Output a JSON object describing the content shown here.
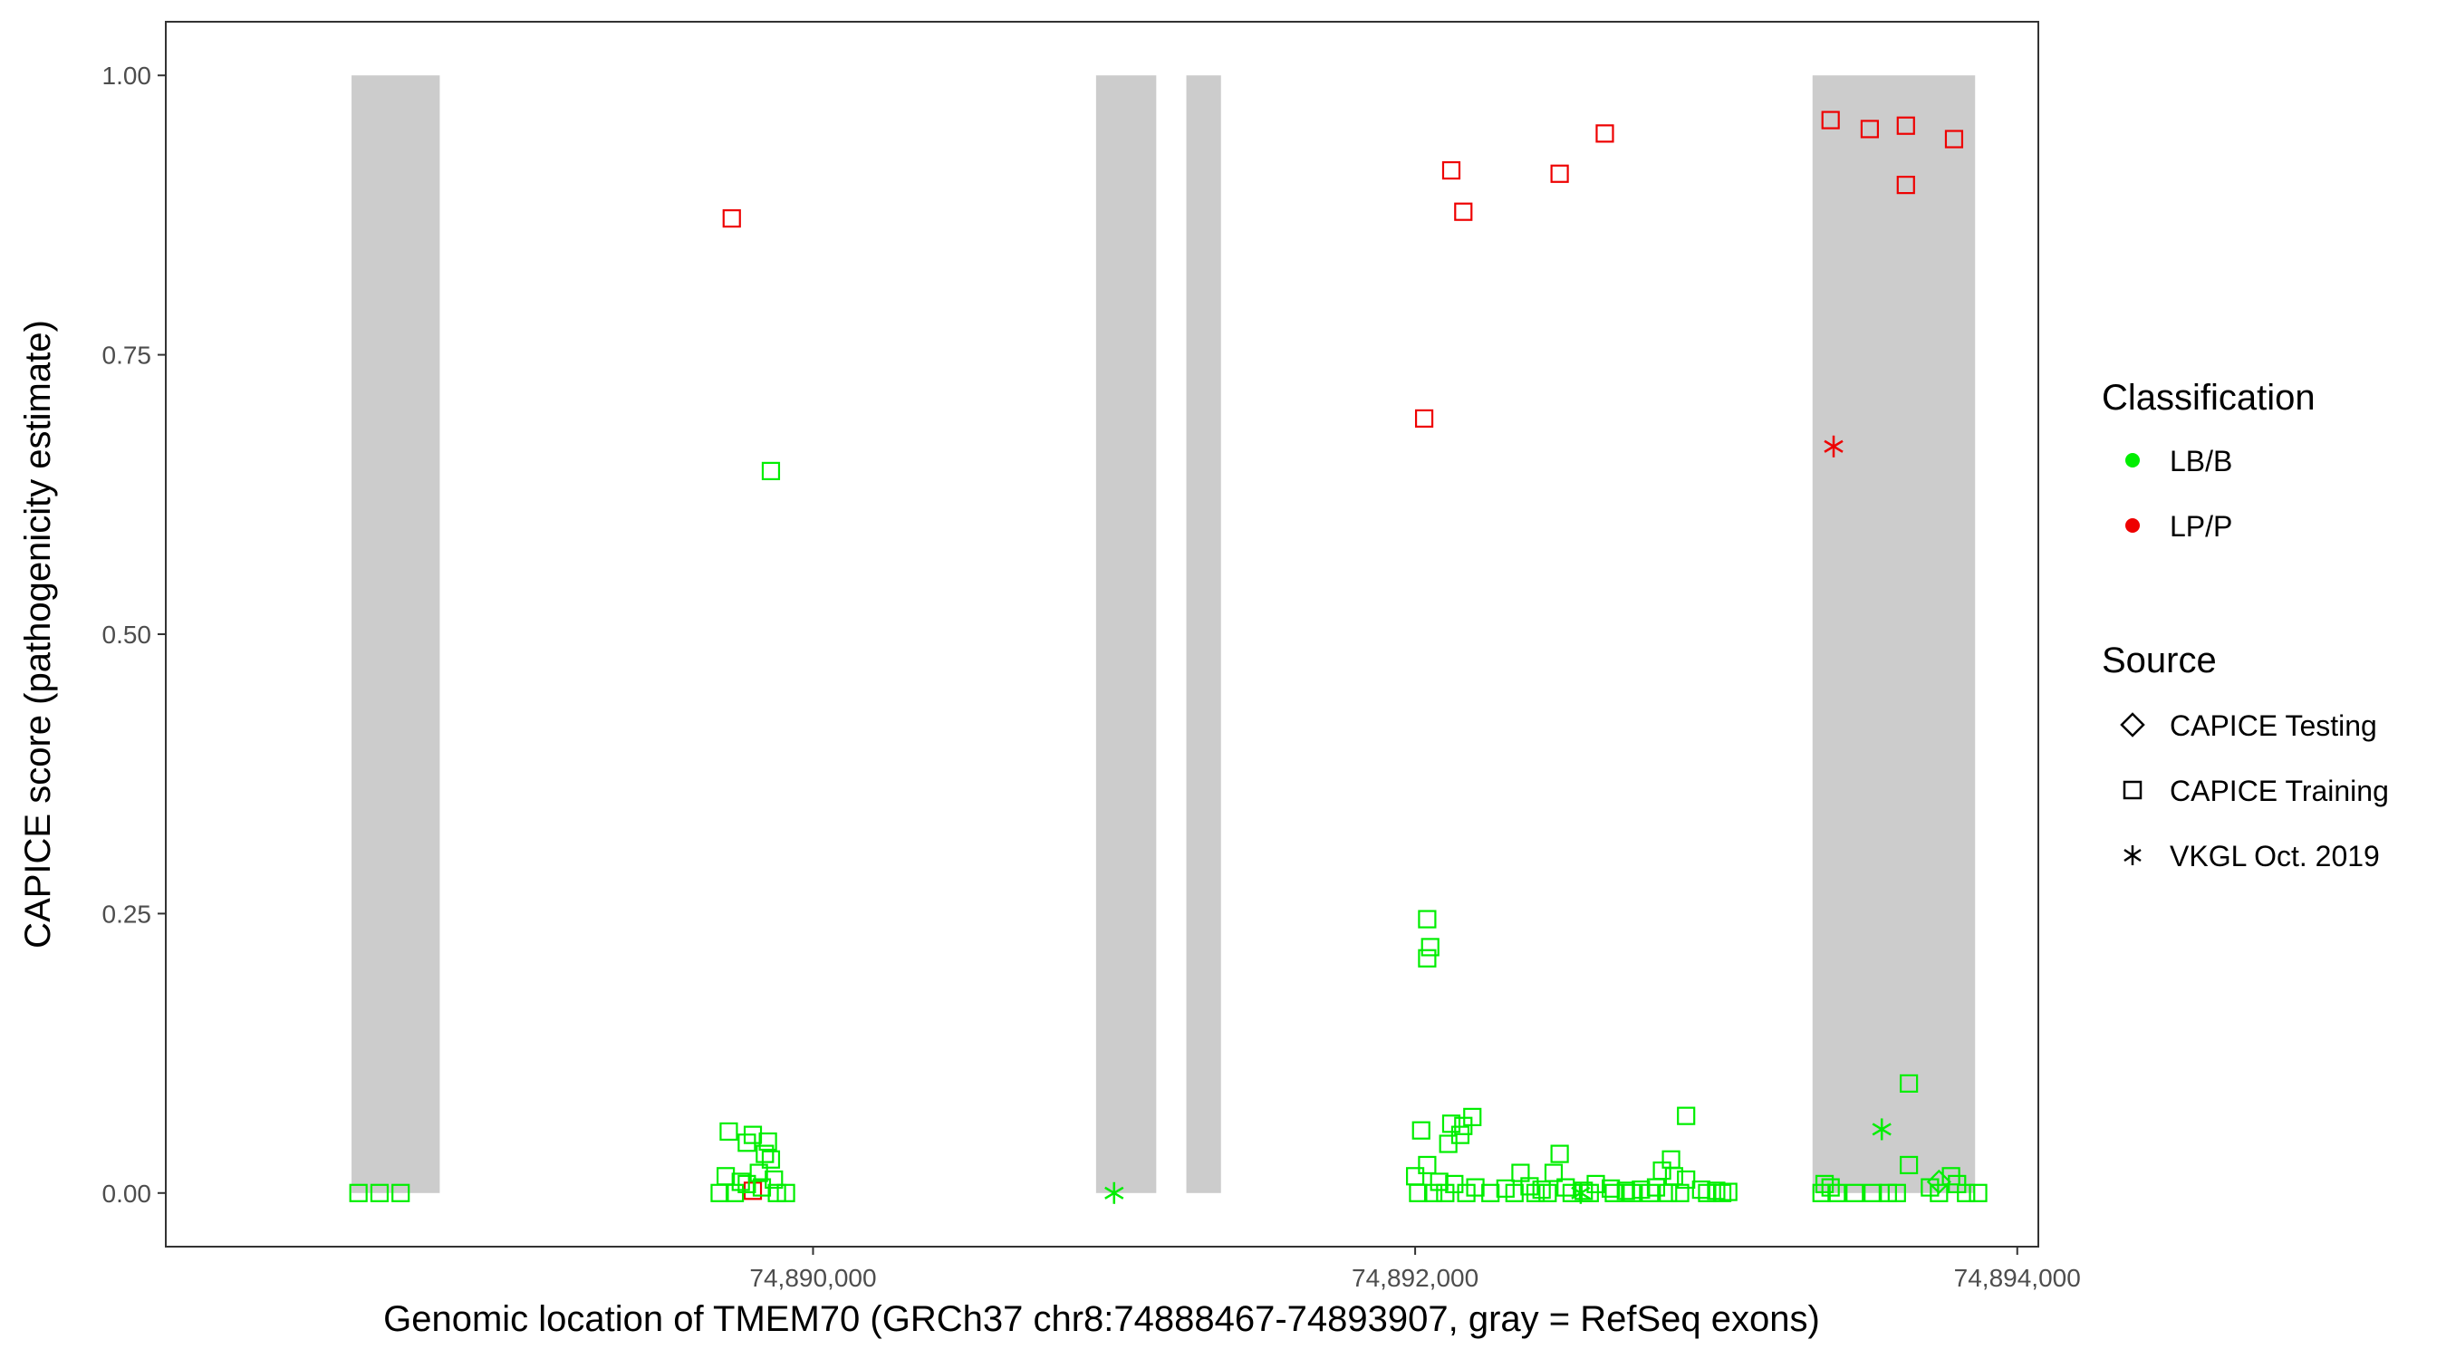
{
  "chart_data": {
    "type": "scatter",
    "title": "",
    "xlabel": "Genomic location of TMEM70 (GRCh37 chr8:74888467-74893907, gray = RefSeq exons)",
    "ylabel": "CAPICE score (pathogenicity estimate)",
    "xlim": [
      74887850,
      74894070
    ],
    "ylim": [
      -0.048,
      1.048
    ],
    "grid": false,
    "legend_position": "right",
    "x_ticks": [
      74890000,
      74892000,
      74894000
    ],
    "x_tick_labels": [
      "74,890,000",
      "74,892,000",
      "74,894,000"
    ],
    "y_ticks": [
      0.0,
      0.25,
      0.5,
      0.75,
      1.0
    ],
    "y_tick_labels": [
      "0.00",
      "0.25",
      "0.50",
      "0.75",
      "1.00"
    ],
    "exons": [
      [
        74888467,
        74888760
      ],
      [
        74890940,
        74891140
      ],
      [
        74891240,
        74891355
      ],
      [
        74893320,
        74893860
      ]
    ],
    "colors": {
      "LB/B": "#00ee00",
      "LP/P": "#ee0000",
      "exon": "#cccccc"
    },
    "legend": {
      "classification_title": "Classification",
      "classification_items": [
        "LB/B",
        "LP/P"
      ],
      "source_title": "Source",
      "source_items": [
        "CAPICE Testing",
        "CAPICE Training",
        "VKGL Oct. 2019"
      ]
    },
    "series": [
      {
        "classification": "LP/P",
        "source": "CAPICE Training",
        "points": [
          [
            74889730,
            0.872
          ],
          [
            74892120,
            0.915
          ],
          [
            74892160,
            0.878
          ],
          [
            74892480,
            0.912
          ],
          [
            74892630,
            0.948
          ],
          [
            74893380,
            0.96
          ],
          [
            74893510,
            0.952
          ],
          [
            74893630,
            0.955
          ],
          [
            74893630,
            0.902
          ],
          [
            74893790,
            0.943
          ],
          [
            74892030,
            0.693
          ],
          [
            74889800,
            0.002
          ]
        ]
      },
      {
        "classification": "LP/P",
        "source": "VKGL Oct. 2019",
        "points": [
          [
            74893390,
            0.668
          ]
        ]
      },
      {
        "classification": "LB/B",
        "source": "CAPICE Training",
        "points": [
          [
            74888490,
            0.0
          ],
          [
            74888560,
            0.0
          ],
          [
            74888630,
            0.0
          ],
          [
            74889860,
            0.646
          ],
          [
            74889720,
            0.055
          ],
          [
            74889780,
            0.045
          ],
          [
            74889800,
            0.052
          ],
          [
            74889850,
            0.046
          ],
          [
            74889840,
            0.035
          ],
          [
            74889860,
            0.03
          ],
          [
            74889820,
            0.018
          ],
          [
            74889710,
            0.015
          ],
          [
            74889760,
            0.01
          ],
          [
            74889870,
            0.012
          ],
          [
            74889780,
            0.008
          ],
          [
            74889830,
            0.005
          ],
          [
            74889690,
            0.0
          ],
          [
            74889740,
            0.0
          ],
          [
            74889880,
            0.0
          ],
          [
            74889910,
            0.0
          ],
          [
            74892040,
            0.245
          ],
          [
            74892050,
            0.22
          ],
          [
            74892040,
            0.21
          ],
          [
            74892020,
            0.056
          ],
          [
            74892110,
            0.044
          ],
          [
            74892150,
            0.052
          ],
          [
            74892160,
            0.06
          ],
          [
            74892120,
            0.062
          ],
          [
            74892190,
            0.068
          ],
          [
            74892040,
            0.025
          ],
          [
            74892900,
            0.069
          ],
          [
            74892480,
            0.035
          ],
          [
            74892350,
            0.018
          ],
          [
            74892460,
            0.018
          ],
          [
            74892850,
            0.03
          ],
          [
            74892820,
            0.02
          ],
          [
            74892860,
            0.015
          ],
          [
            74892900,
            0.012
          ],
          [
            74892000,
            0.015
          ],
          [
            74892080,
            0.01
          ],
          [
            74892130,
            0.008
          ],
          [
            74892200,
            0.005
          ],
          [
            74892300,
            0.004
          ],
          [
            74892380,
            0.006
          ],
          [
            74892420,
            0.003
          ],
          [
            74892500,
            0.005
          ],
          [
            74892560,
            0.002
          ],
          [
            74892600,
            0.008
          ],
          [
            74892650,
            0.004
          ],
          [
            74892700,
            0.002
          ],
          [
            74892750,
            0.003
          ],
          [
            74892800,
            0.005
          ],
          [
            74892950,
            0.003
          ],
          [
            74893000,
            0.002
          ],
          [
            74893040,
            0.001
          ],
          [
            74892010,
            0.0
          ],
          [
            74892060,
            0.0
          ],
          [
            74892100,
            0.0
          ],
          [
            74892170,
            0.0
          ],
          [
            74892250,
            0.0
          ],
          [
            74892330,
            0.0
          ],
          [
            74892400,
            0.0
          ],
          [
            74892440,
            0.0
          ],
          [
            74892520,
            0.0
          ],
          [
            74892580,
            0.0
          ],
          [
            74892660,
            0.0
          ],
          [
            74892720,
            0.0
          ],
          [
            74892780,
            0.0
          ],
          [
            74892840,
            0.0
          ],
          [
            74892880,
            0.0
          ],
          [
            74892970,
            0.0
          ],
          [
            74893020,
            0.0
          ],
          [
            74893640,
            0.098
          ],
          [
            74893640,
            0.025
          ],
          [
            74893360,
            0.008
          ],
          [
            74893380,
            0.005
          ],
          [
            74893350,
            0.0
          ],
          [
            74893400,
            0.0
          ],
          [
            74893460,
            0.0
          ],
          [
            74893520,
            0.0
          ],
          [
            74893570,
            0.0
          ],
          [
            74893600,
            0.0
          ],
          [
            74893710,
            0.005
          ],
          [
            74893740,
            0.0
          ],
          [
            74893780,
            0.015
          ],
          [
            74893800,
            0.008
          ],
          [
            74893830,
            0.0
          ],
          [
            74893870,
            0.0
          ]
        ]
      },
      {
        "classification": "LB/B",
        "source": "CAPICE Testing",
        "points": [
          [
            74893740,
            0.01
          ]
        ]
      },
      {
        "classification": "LB/B",
        "source": "VKGL Oct. 2019",
        "points": [
          [
            74891000,
            0.0
          ],
          [
            74893550,
            0.057
          ],
          [
            74892550,
            0.0
          ]
        ]
      }
    ]
  }
}
